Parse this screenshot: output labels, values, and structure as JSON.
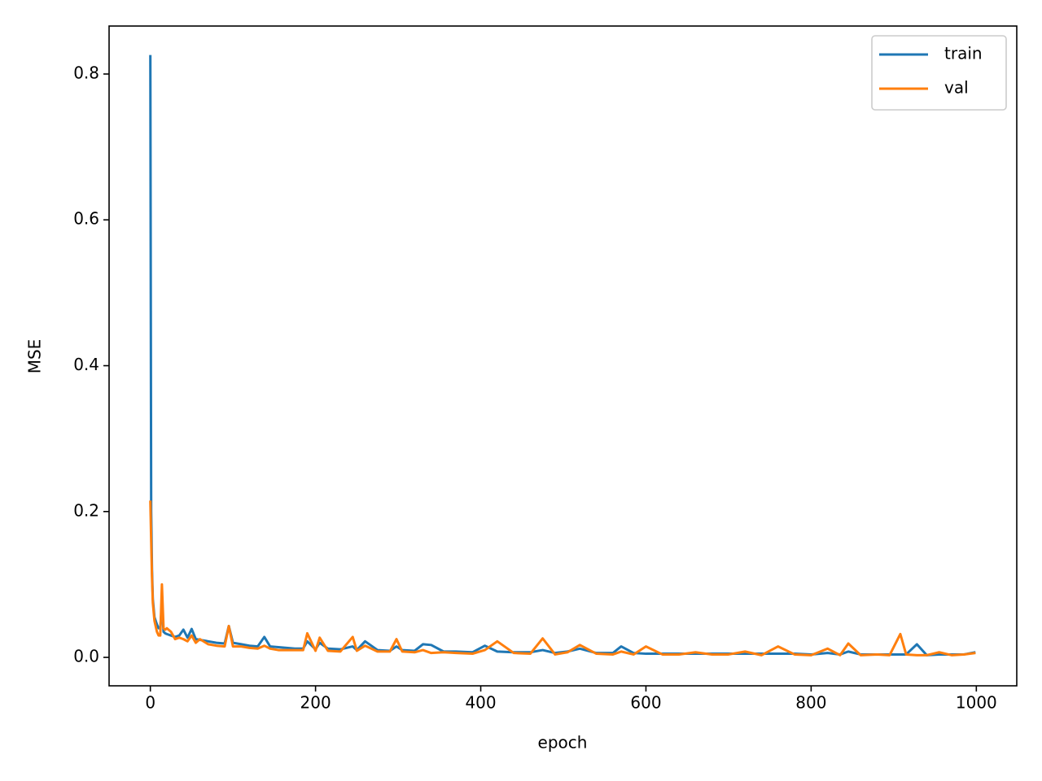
{
  "chart_data": {
    "type": "line",
    "xlabel": "epoch",
    "ylabel": "MSE",
    "x": [
      0,
      1,
      2,
      3,
      5,
      8,
      10,
      12,
      14,
      16,
      18,
      20,
      25,
      30,
      35,
      40,
      45,
      50,
      55,
      60,
      70,
      80,
      90,
      95,
      100,
      110,
      120,
      130,
      138,
      145,
      155,
      165,
      175,
      185,
      190,
      200,
      205,
      215,
      230,
      245,
      250,
      260,
      275,
      290,
      298,
      305,
      320,
      330,
      340,
      355,
      370,
      390,
      405,
      420,
      440,
      460,
      475,
      490,
      505,
      520,
      540,
      560,
      570,
      585,
      600,
      620,
      640,
      660,
      680,
      700,
      720,
      740,
      760,
      780,
      800,
      820,
      835,
      845,
      860,
      880,
      895,
      908,
      915,
      928,
      940,
      955,
      970,
      985,
      999
    ],
    "series": [
      {
        "name": "train",
        "color": "#1f77b4",
        "values": [
          0.826,
          0.2,
          0.12,
          0.08,
          0.055,
          0.045,
          0.04,
          0.04,
          0.072,
          0.035,
          0.033,
          0.032,
          0.03,
          0.028,
          0.03,
          0.038,
          0.027,
          0.039,
          0.025,
          0.024,
          0.022,
          0.02,
          0.019,
          0.043,
          0.02,
          0.018,
          0.016,
          0.015,
          0.028,
          0.015,
          0.014,
          0.013,
          0.012,
          0.012,
          0.022,
          0.011,
          0.02,
          0.012,
          0.011,
          0.015,
          0.01,
          0.022,
          0.01,
          0.009,
          0.015,
          0.01,
          0.009,
          0.018,
          0.017,
          0.008,
          0.008,
          0.007,
          0.016,
          0.008,
          0.007,
          0.007,
          0.01,
          0.006,
          0.008,
          0.012,
          0.006,
          0.006,
          0.015,
          0.006,
          0.005,
          0.005,
          0.005,
          0.005,
          0.005,
          0.005,
          0.005,
          0.005,
          0.005,
          0.005,
          0.004,
          0.006,
          0.004,
          0.008,
          0.004,
          0.004,
          0.004,
          0.004,
          0.004,
          0.018,
          0.003,
          0.004,
          0.004,
          0.004,
          0.007
        ]
      },
      {
        "name": "val",
        "color": "#ff7f0e",
        "values": [
          0.215,
          0.16,
          0.11,
          0.075,
          0.05,
          0.035,
          0.03,
          0.03,
          0.1,
          0.04,
          0.038,
          0.04,
          0.035,
          0.025,
          0.027,
          0.025,
          0.022,
          0.03,
          0.02,
          0.025,
          0.018,
          0.016,
          0.015,
          0.043,
          0.015,
          0.015,
          0.013,
          0.012,
          0.016,
          0.012,
          0.01,
          0.01,
          0.01,
          0.01,
          0.033,
          0.009,
          0.027,
          0.009,
          0.008,
          0.028,
          0.009,
          0.016,
          0.008,
          0.008,
          0.025,
          0.008,
          0.007,
          0.01,
          0.006,
          0.007,
          0.006,
          0.005,
          0.01,
          0.022,
          0.006,
          0.005,
          0.026,
          0.004,
          0.007,
          0.017,
          0.005,
          0.004,
          0.008,
          0.004,
          0.015,
          0.004,
          0.004,
          0.007,
          0.004,
          0.004,
          0.008,
          0.003,
          0.015,
          0.004,
          0.003,
          0.012,
          0.003,
          0.019,
          0.003,
          0.004,
          0.003,
          0.032,
          0.004,
          0.003,
          0.003,
          0.007,
          0.003,
          0.004,
          0.006
        ]
      }
    ],
    "xlim": [
      -49.95,
      1048.95
    ],
    "ylim": [
      -0.039,
      0.8658
    ],
    "xticks": [
      0,
      200,
      400,
      600,
      800,
      1000
    ],
    "yticks": [
      {
        "value": 0,
        "label": "0.0"
      },
      0.2,
      0.4,
      0.6,
      0.8
    ],
    "grid": false,
    "legend": "upper right"
  }
}
